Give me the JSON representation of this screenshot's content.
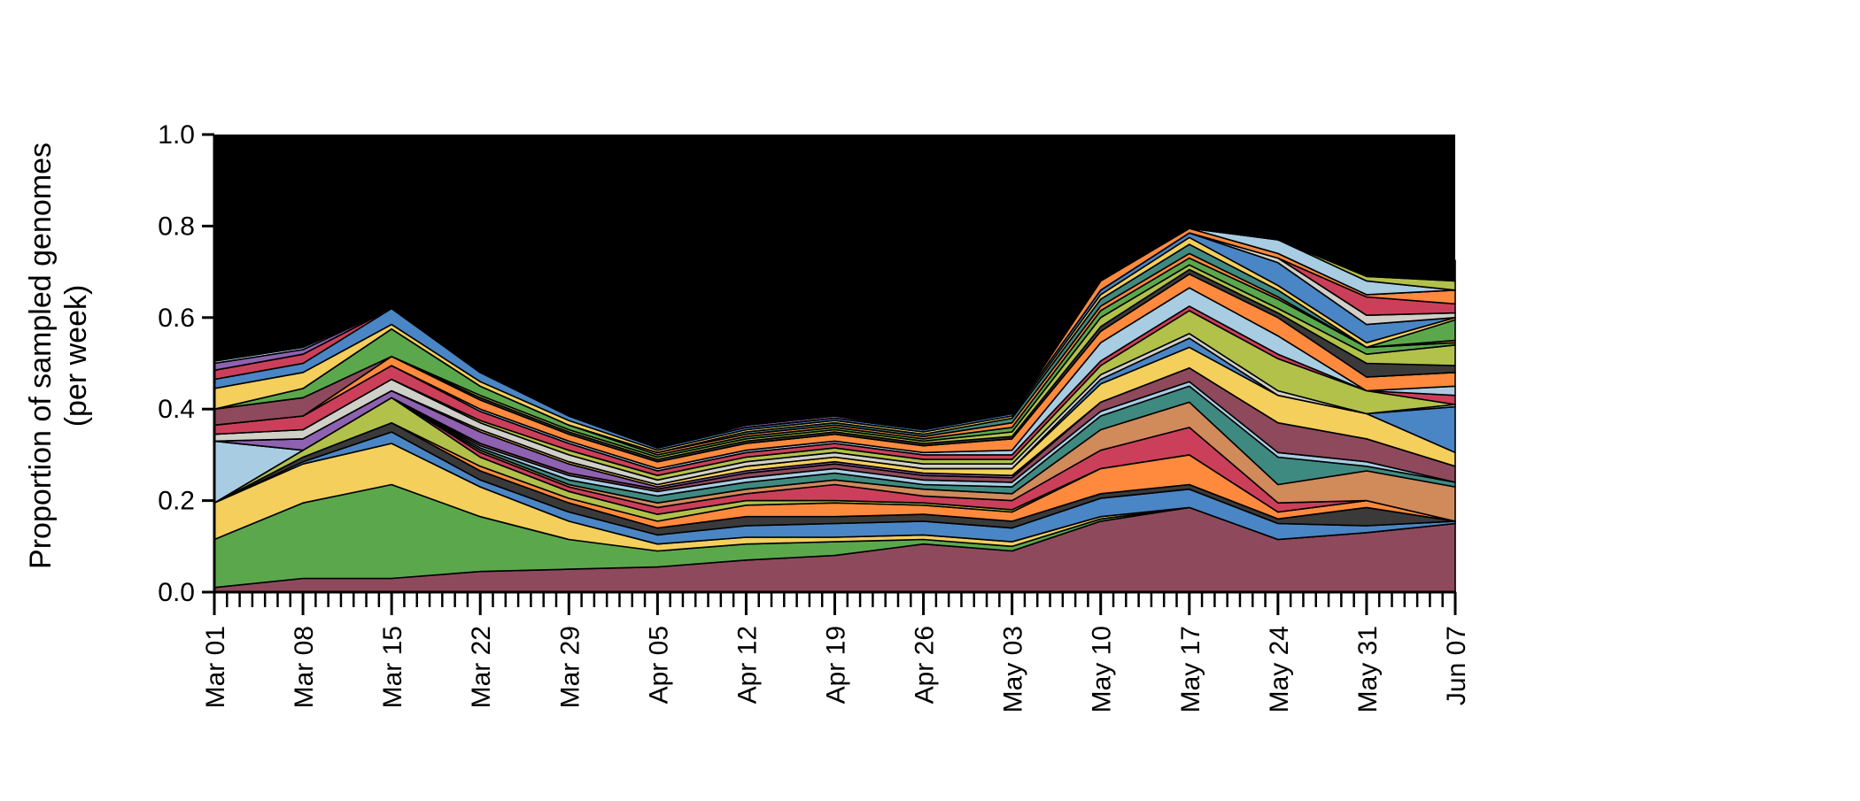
{
  "chart_data": {
    "type": "area",
    "stacked": true,
    "normalized": true,
    "title": "",
    "xlabel": "",
    "ylabel_lines": [
      "Proportion of sampled genomes",
      "(per week)"
    ],
    "x": [
      "Mar 01",
      "Mar 08",
      "Mar 15",
      "Mar 22",
      "Mar 29",
      "Apr 05",
      "Apr 12",
      "Apr 19",
      "Apr 26",
      "May 03",
      "May 10",
      "May 17",
      "May 24",
      "May 31",
      "Jun 07"
    ],
    "ylim": [
      0,
      1
    ],
    "yticks": [
      "0.0",
      "0.2",
      "0.4",
      "0.6",
      "0.8",
      "1.0"
    ],
    "minor_ticks_per_interval": 6,
    "grid": false,
    "legend": "none",
    "series": [
      {
        "color": "#8e4a5c",
        "values": [
          0.01,
          0.03,
          0.03,
          0.045,
          0.05,
          0.055,
          0.07,
          0.08,
          0.105,
          0.09,
          0.155,
          0.185,
          0.115,
          0.13,
          0.15
        ]
      },
      {
        "color": "#5ba84c",
        "values": [
          0.105,
          0.165,
          0.205,
          0.12,
          0.065,
          0.035,
          0.035,
          0.03,
          0.01,
          0.01,
          0.005,
          0.0,
          0.0,
          0.0,
          0.0
        ]
      },
      {
        "color": "#f4cf5c",
        "values": [
          0.08,
          0.085,
          0.09,
          0.065,
          0.04,
          0.015,
          0.015,
          0.01,
          0.01,
          0.01,
          0.005,
          0.0,
          0.0,
          0.0,
          0.0
        ]
      },
      {
        "color": "#4a86c5",
        "values": [
          0.0,
          0.005,
          0.025,
          0.015,
          0.02,
          0.02,
          0.025,
          0.03,
          0.03,
          0.03,
          0.04,
          0.04,
          0.035,
          0.015,
          0.005
        ]
      },
      {
        "color": "#3a3a3a",
        "values": [
          0.0,
          0.01,
          0.02,
          0.02,
          0.02,
          0.015,
          0.02,
          0.015,
          0.015,
          0.015,
          0.01,
          0.01,
          0.01,
          0.04,
          0.0
        ]
      },
      {
        "color": "#ff8a3d",
        "values": [
          0.0,
          0.0,
          0.0,
          0.01,
          0.01,
          0.015,
          0.025,
          0.03,
          0.02,
          0.02,
          0.055,
          0.065,
          0.015,
          0.015,
          0.0
        ]
      },
      {
        "color": "#b2c14a",
        "values": [
          0.0,
          0.015,
          0.055,
          0.02,
          0.015,
          0.015,
          0.01,
          0.005,
          0.005,
          0.005,
          0.0,
          0.0,
          0.0,
          0.0,
          0.0
        ]
      },
      {
        "color": "#cc3f5a",
        "values": [
          0.0,
          0.0,
          0.0,
          0.01,
          0.01,
          0.015,
          0.015,
          0.035,
          0.015,
          0.02,
          0.04,
          0.06,
          0.02,
          0.0,
          0.0
        ]
      },
      {
        "color": "#d18a5a",
        "values": [
          0.0,
          0.0,
          0.0,
          0.005,
          0.005,
          0.01,
          0.01,
          0.01,
          0.015,
          0.015,
          0.045,
          0.055,
          0.04,
          0.065,
          0.075
        ]
      },
      {
        "color": "#3f8a80",
        "values": [
          0.0,
          0.0,
          0.0,
          0.005,
          0.01,
          0.015,
          0.015,
          0.015,
          0.01,
          0.015,
          0.03,
          0.035,
          0.06,
          0.01,
          0.01
        ]
      },
      {
        "color": "#a8cde3",
        "values": [
          0.135,
          0.0,
          0.0,
          0.005,
          0.01,
          0.01,
          0.01,
          0.01,
          0.01,
          0.01,
          0.01,
          0.01,
          0.01,
          0.01,
          0.0
        ]
      },
      {
        "color": "#8e4a5c",
        "values": [
          0.0,
          0.0,
          0.0,
          0.005,
          0.005,
          0.005,
          0.01,
          0.01,
          0.01,
          0.01,
          0.02,
          0.03,
          0.065,
          0.05,
          0.035
        ]
      },
      {
        "color": "#8e62b0",
        "values": [
          0.0,
          0.025,
          0.015,
          0.025,
          0.02,
          0.005,
          0.005,
          0.005,
          0.005,
          0.005,
          0.0,
          0.0,
          0.0,
          0.0,
          0.0
        ]
      },
      {
        "color": "#f4cf5c",
        "values": [
          0.0,
          0.0,
          0.0,
          0.005,
          0.005,
          0.005,
          0.01,
          0.01,
          0.01,
          0.015,
          0.04,
          0.045,
          0.06,
          0.055,
          0.03
        ]
      },
      {
        "color": "#4a86c5",
        "values": [
          0.0,
          0.0,
          0.0,
          0.0,
          0.0,
          0.0,
          0.0,
          0.0,
          0.0,
          0.0,
          0.01,
          0.02,
          0.0,
          0.0,
          0.1
        ]
      },
      {
        "color": "#d0d0c8",
        "values": [
          0.015,
          0.02,
          0.025,
          0.015,
          0.015,
          0.01,
          0.01,
          0.01,
          0.01,
          0.01,
          0.01,
          0.01,
          0.01,
          0.0,
          0.005
        ]
      },
      {
        "color": "#b2c14a",
        "values": [
          0.0,
          0.0,
          0.0,
          0.005,
          0.01,
          0.01,
          0.01,
          0.01,
          0.01,
          0.01,
          0.02,
          0.05,
          0.07,
          0.05,
          0.0
        ]
      },
      {
        "color": "#cc3f5a",
        "values": [
          0.02,
          0.03,
          0.03,
          0.02,
          0.015,
          0.01,
          0.01,
          0.01,
          0.01,
          0.01,
          0.01,
          0.01,
          0.01,
          0.0,
          0.02
        ]
      },
      {
        "color": "#a8cde3",
        "values": [
          0.0,
          0.0,
          0.0,
          0.005,
          0.005,
          0.005,
          0.005,
          0.005,
          0.005,
          0.01,
          0.04,
          0.04,
          0.04,
          0.0,
          0.02
        ]
      },
      {
        "color": "#ff8a3d",
        "values": [
          0.0,
          0.0,
          0.02,
          0.02,
          0.015,
          0.015,
          0.015,
          0.015,
          0.015,
          0.025,
          0.025,
          0.03,
          0.04,
          0.03,
          0.03
        ]
      },
      {
        "color": "#8e4a5c",
        "values": [
          0.035,
          0.04,
          0.0,
          0.0,
          0.0,
          0.0,
          0.0,
          0.0,
          0.0,
          0.0,
          0.0,
          0.0,
          0.0,
          0.0,
          0.0
        ]
      },
      {
        "color": "#3a3a3a",
        "values": [
          0.0,
          0.0,
          0.0,
          0.005,
          0.005,
          0.005,
          0.005,
          0.005,
          0.005,
          0.005,
          0.01,
          0.01,
          0.01,
          0.03,
          0.015
        ]
      },
      {
        "color": "#b2c14a",
        "values": [
          0.0,
          0.0,
          0.0,
          0.005,
          0.005,
          0.005,
          0.005,
          0.005,
          0.005,
          0.01,
          0.02,
          0.01,
          0.01,
          0.02,
          0.045
        ]
      },
      {
        "color": "#5ba84c",
        "values": [
          0.0,
          0.02,
          0.06,
          0.02,
          0.01,
          0.005,
          0.005,
          0.005,
          0.005,
          0.01,
          0.015,
          0.015,
          0.02,
          0.015,
          0.005
        ]
      },
      {
        "color": "#ff8a3d",
        "values": [
          0.0,
          0.0,
          0.0,
          0.0,
          0.0,
          0.005,
          0.005,
          0.005,
          0.005,
          0.01,
          0.01,
          0.01,
          0.005,
          0.0,
          0.005
        ]
      },
      {
        "color": "#3f8a80",
        "values": [
          0.0,
          0.0,
          0.0,
          0.0,
          0.0,
          0.0,
          0.005,
          0.005,
          0.005,
          0.01,
          0.015,
          0.02,
          0.015,
          0.0,
          0.0
        ]
      },
      {
        "color": "#5ba84c",
        "values": [
          0.0,
          0.0,
          0.0,
          0.0,
          0.0,
          0.0,
          0.0,
          0.0,
          0.0,
          0.0,
          0.0,
          0.0,
          0.0,
          0.0,
          0.045
        ]
      },
      {
        "color": "#f4cf5c",
        "values": [
          0.045,
          0.035,
          0.01,
          0.01,
          0.01,
          0.005,
          0.005,
          0.005,
          0.005,
          0.005,
          0.01,
          0.015,
          0.01,
          0.01,
          0.005
        ]
      },
      {
        "color": "#4a86c5",
        "values": [
          0.02,
          0.02,
          0.035,
          0.02,
          0.01,
          0.005,
          0.005,
          0.005,
          0.005,
          0.005,
          0.01,
          0.01,
          0.05,
          0.04,
          0.0
        ]
      },
      {
        "color": "#d0d0c8",
        "values": [
          0.0,
          0.0,
          0.0,
          0.0,
          0.0,
          0.0,
          0.0,
          0.0,
          0.0,
          0.0,
          0.0,
          0.0,
          0.01,
          0.02,
          0.01
        ]
      },
      {
        "color": "#cc3f5a",
        "values": [
          0.02,
          0.02,
          0.0,
          0.0,
          0.0,
          0.0,
          0.0,
          0.0,
          0.0,
          0.0,
          0.0,
          0.0,
          0.0,
          0.04,
          0.02
        ]
      },
      {
        "color": "#ff8a3d",
        "values": [
          0.0,
          0.0,
          0.0,
          0.0,
          0.0,
          0.0,
          0.0,
          0.0,
          0.0,
          0.0,
          0.02,
          0.01,
          0.01,
          0.005,
          0.03
        ]
      },
      {
        "color": "#8e62b0",
        "values": [
          0.015,
          0.01,
          0.0,
          0.0,
          0.0,
          0.0,
          0.005,
          0.005,
          0.0,
          0.0,
          0.0,
          0.0,
          0.0,
          0.0,
          0.0
        ]
      },
      {
        "color": "#a8cde3",
        "values": [
          0.005,
          0.005,
          0.0,
          0.0,
          0.0,
          0.0,
          0.0,
          0.0,
          0.0,
          0.0,
          0.0,
          0.0,
          0.03,
          0.03,
          0.0
        ]
      },
      {
        "color": "#b2c14a",
        "values": [
          0.0,
          0.0,
          0.0,
          0.0,
          0.0,
          0.0,
          0.0,
          0.0,
          0.0,
          0.0,
          0.0,
          0.0,
          0.0,
          0.01,
          0.02
        ]
      },
      {
        "color": "#000000",
        "values": [
          0.275,
          0.34,
          0.36,
          0.355,
          0.375,
          0.38,
          0.345,
          0.335,
          0.345,
          0.28,
          0.185,
          0.075,
          0.03,
          0.08,
          0.045
        ]
      }
    ]
  }
}
